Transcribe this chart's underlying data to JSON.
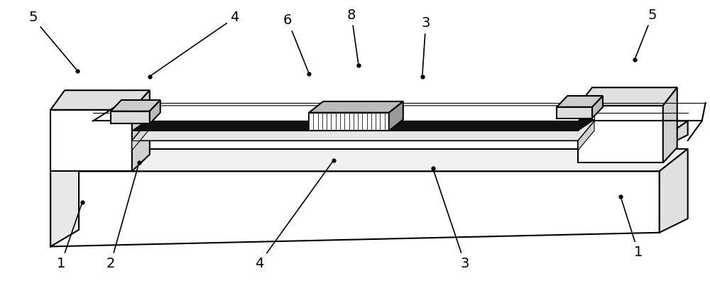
{
  "bg_color": "#ffffff",
  "line_color": "#000000",
  "line_width": 1.5,
  "lw_thin": 0.8,
  "fig_width": 10.0,
  "fig_height": 3.96,
  "label_fontsize": 14
}
